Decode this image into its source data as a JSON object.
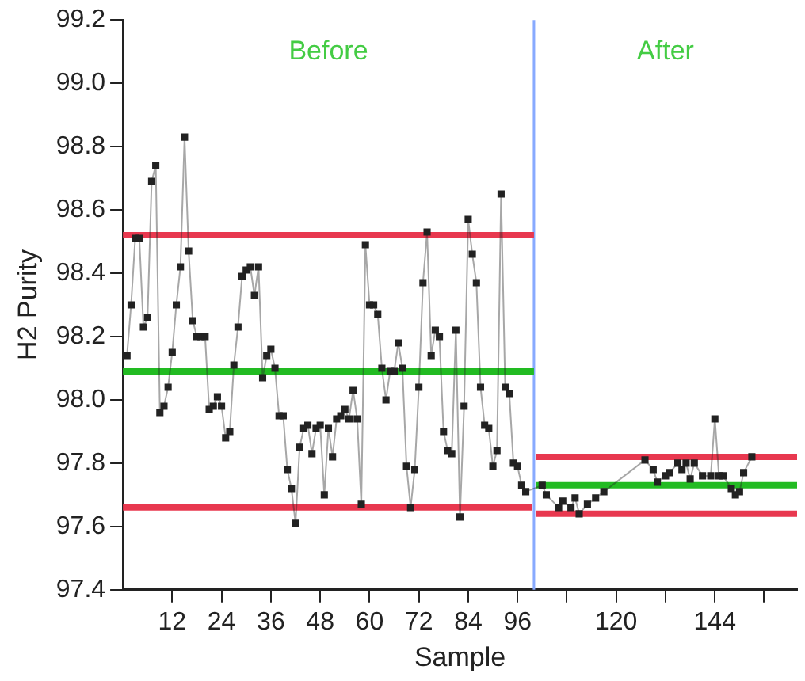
{
  "chart_data": {
    "type": "line",
    "xlabel": "Sample",
    "ylabel": "H2 Purity",
    "marker": "square",
    "grid": false,
    "legend": false,
    "xlim": [
      0,
      164
    ],
    "xticks": [
      12,
      24,
      36,
      48,
      60,
      72,
      84,
      96,
      {
        "value": 108,
        "label": null
      },
      120,
      {
        "value": 132,
        "label": null
      },
      144,
      {
        "value": 156,
        "label": null
      }
    ],
    "ylim": [
      97.4,
      99.2
    ],
    "yticks": [
      97.4,
      97.6,
      97.8,
      {
        "value": 98,
        "label": "98.0"
      },
      98.2,
      98.4,
      98.6,
      98.8,
      {
        "value": 99,
        "label": "99.0"
      },
      99.2
    ],
    "series": [
      {
        "color": "#222222",
        "x": [
          1,
          2,
          3,
          4,
          5,
          6,
          7,
          8,
          9,
          10,
          11,
          12,
          13,
          14,
          15,
          16,
          17,
          18,
          19,
          20,
          21,
          22,
          23,
          24,
          25,
          26,
          27,
          28,
          29,
          30,
          31,
          32,
          33,
          34,
          35,
          36,
          37,
          38,
          39,
          40,
          41,
          42,
          43,
          44,
          45,
          46,
          47,
          48,
          49,
          50,
          51,
          52,
          53,
          54,
          55,
          56,
          57,
          58,
          59,
          60,
          61,
          62,
          63,
          64,
          65,
          66,
          67,
          68,
          69,
          70,
          71,
          72,
          73,
          74,
          75,
          76,
          77,
          78,
          79,
          80,
          81,
          82,
          83,
          84,
          85,
          86,
          87,
          88,
          89,
          90,
          91,
          92,
          93,
          94,
          95,
          96,
          97,
          98,
          102,
          103,
          106,
          107,
          109,
          110,
          111,
          113,
          115,
          117,
          127,
          129,
          130,
          132,
          133,
          135,
          136,
          137,
          138,
          139,
          141,
          143,
          144,
          145,
          146,
          148,
          149,
          150,
          151,
          153
        ],
        "values": [
          98.14,
          98.3,
          98.51,
          98.51,
          98.23,
          98.26,
          98.69,
          98.74,
          97.96,
          97.98,
          98.04,
          98.15,
          98.3,
          98.42,
          98.83,
          98.47,
          98.25,
          98.2,
          98.2,
          98.2,
          97.97,
          97.98,
          98.01,
          97.98,
          97.88,
          97.9,
          98.11,
          98.23,
          98.39,
          98.41,
          98.42,
          98.33,
          98.42,
          98.07,
          98.14,
          98.16,
          98.1,
          97.95,
          97.95,
          97.78,
          97.72,
          97.61,
          97.85,
          97.91,
          97.92,
          97.83,
          97.91,
          97.92,
          97.7,
          97.91,
          97.82,
          97.94,
          97.95,
          97.97,
          97.94,
          98.03,
          97.94,
          97.67,
          98.49,
          98.3,
          98.3,
          98.27,
          98.1,
          98.0,
          98.09,
          98.09,
          98.18,
          98.1,
          97.79,
          97.66,
          97.78,
          98.04,
          98.37,
          98.53,
          98.14,
          98.22,
          98.2,
          97.9,
          97.84,
          97.83,
          98.22,
          97.63,
          97.98,
          98.57,
          98.46,
          98.37,
          98.04,
          97.92,
          97.91,
          97.79,
          97.84,
          98.65,
          98.04,
          98.02,
          97.8,
          97.79,
          97.73,
          97.71,
          97.73,
          97.7,
          97.66,
          97.68,
          97.66,
          97.69,
          97.64,
          97.67,
          97.69,
          97.71,
          97.81,
          97.78,
          97.74,
          97.76,
          97.77,
          97.8,
          97.78,
          97.8,
          97.75,
          97.8,
          97.76,
          97.76,
          97.94,
          97.76,
          97.76,
          97.72,
          97.7,
          97.71,
          97.77,
          97.82
        ]
      },
      {
        "type": "line",
        "marker": "none",
        "color": "#e8384f",
        "x": [
          0,
          100
        ],
        "values": [
          98.52,
          98.52
        ]
      },
      {
        "type": "line",
        "marker": "none",
        "color": "#22bb22",
        "x": [
          0,
          100
        ],
        "values": [
          98.09,
          98.09
        ]
      },
      {
        "type": "line",
        "marker": "none",
        "color": "#e8384f",
        "x": [
          0,
          99.5
        ],
        "values": [
          97.66,
          97.66
        ]
      },
      {
        "type": "line",
        "marker": "none",
        "color": "#e8384f",
        "x": [
          100.5,
          164
        ],
        "values": [
          97.82,
          97.82
        ]
      },
      {
        "type": "line",
        "marker": "none",
        "color": "#22bb22",
        "x": [
          100.5,
          164
        ],
        "values": [
          97.73,
          97.73
        ]
      },
      {
        "type": "line",
        "marker": "none",
        "color": "#e8384f",
        "x": [
          100.5,
          164
        ],
        "values": [
          97.64,
          97.64
        ]
      }
    ],
    "ref_lines": [
      {
        "axis": "x",
        "value": 100,
        "color": "#88aaff"
      }
    ],
    "annotations": [
      "Before",
      "After"
    ]
  }
}
